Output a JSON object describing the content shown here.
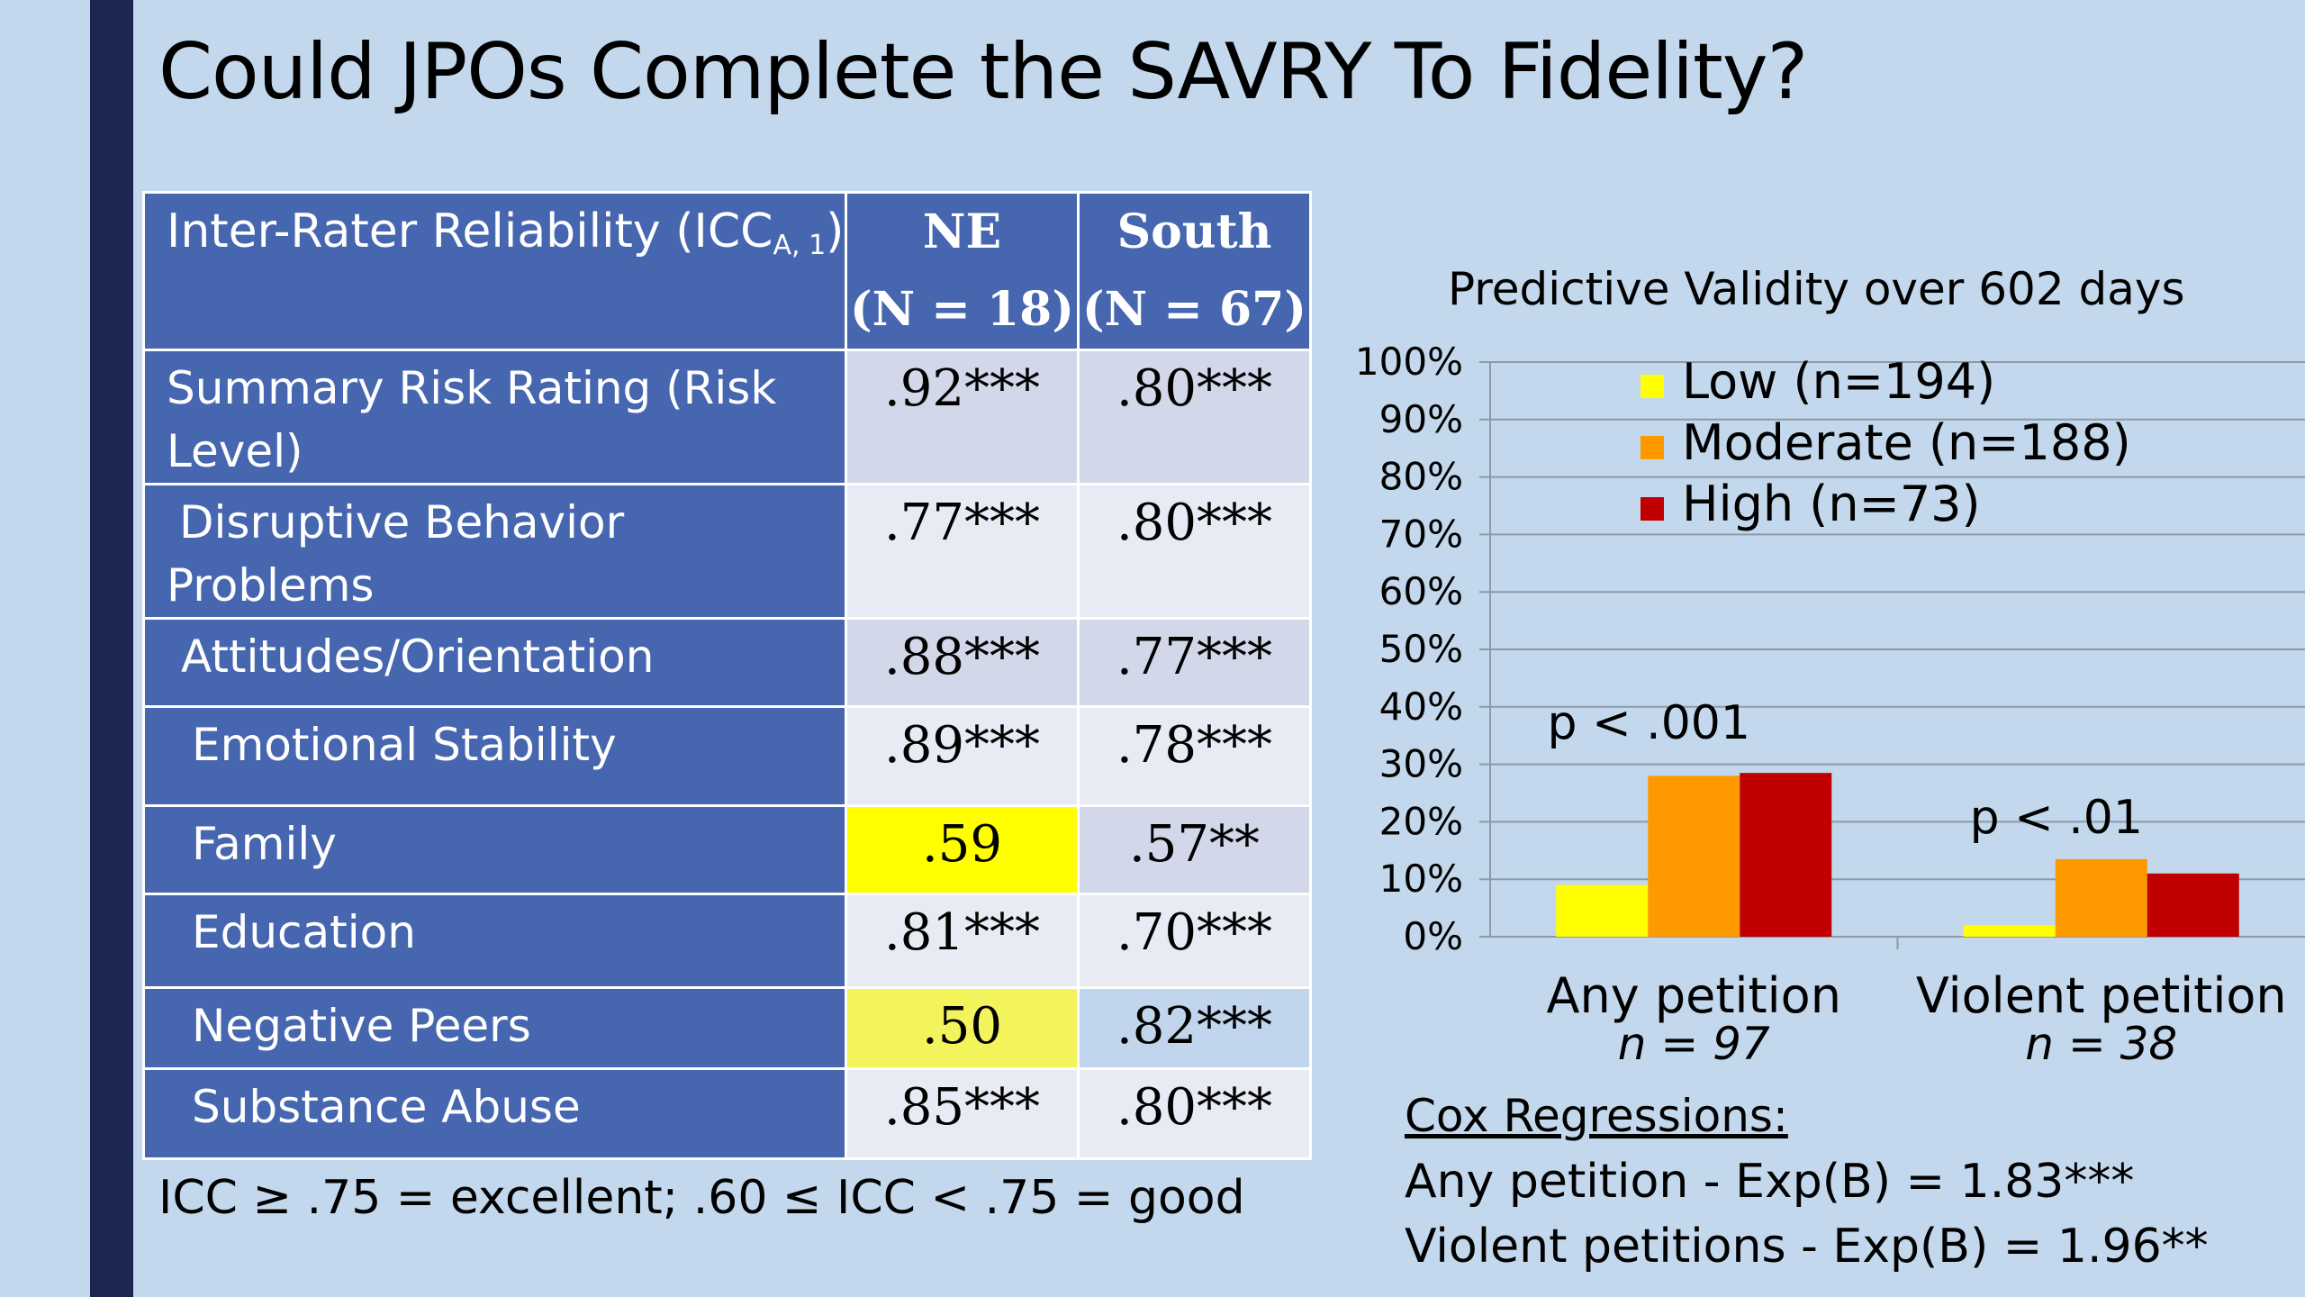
{
  "slide": {
    "title": "Could JPOs Complete the SAVRY To Fidelity?"
  },
  "icc_table": {
    "header": {
      "label": "Inter-Rater Reliability (ICC",
      "label_sub": "A, 1",
      "label_end": ")",
      "col_ne": "NE",
      "col_ne_n": "(N = 18)",
      "col_south": "South",
      "col_south_n": "(N = 67)"
    },
    "rows": [
      {
        "label": "Summary Risk Rating (Risk Level)",
        "ne": ".92***",
        "south": ".80***"
      },
      {
        "label": "Disruptive Behavior Problems",
        "ne": ".77***",
        "south": ".80***"
      },
      {
        "label": "Attitudes/Orientation",
        "ne": ".88***",
        "south": ".77***"
      },
      {
        "label": "Emotional Stability",
        "ne": ".89***",
        "south": ".78***"
      },
      {
        "label": "Family",
        "ne": ".59",
        "south": ".57**"
      },
      {
        "label": "Education",
        "ne": ".81***",
        "south": ".70***"
      },
      {
        "label": "Negative Peers",
        "ne": ".50",
        "south": ".82***"
      },
      {
        "label": "Substance Abuse",
        "ne": ".85***",
        "south": ".80***"
      }
    ],
    "highlight_color": "#ffff00",
    "note": "ICC ≥ .75 = excellent; .60 ≤ ICC < .75 = good"
  },
  "chart_data": {
    "type": "bar",
    "title": "Predictive Validity over 602 days",
    "categories": [
      "Any petition",
      "Violent petition"
    ],
    "category_n": [
      "n = 97",
      "n = 38"
    ],
    "series": [
      {
        "name": "Low (n=194)",
        "color": "#ffff00",
        "values": [
          9,
          2
        ]
      },
      {
        "name": "Moderate (n=188)",
        "color": "#ff9900",
        "values": [
          28,
          13.5
        ]
      },
      {
        "name": "High (n=73)",
        "color": "#c00000",
        "values": [
          28.5,
          11
        ]
      }
    ],
    "ylim": [
      0,
      100
    ],
    "yticks": [
      "0%",
      "10%",
      "20%",
      "30%",
      "40%",
      "50%",
      "60%",
      "70%",
      "80%",
      "90%",
      "100%"
    ],
    "grid": true,
    "legend_position": "top-left",
    "annotations": [
      "p < .001",
      "p < .01"
    ]
  },
  "cox": {
    "title": "Cox Regressions:",
    "line1": "Any petition - Exp(B) = 1.83***",
    "line2": "Violent petitions - Exp(B) = 1.96**"
  }
}
